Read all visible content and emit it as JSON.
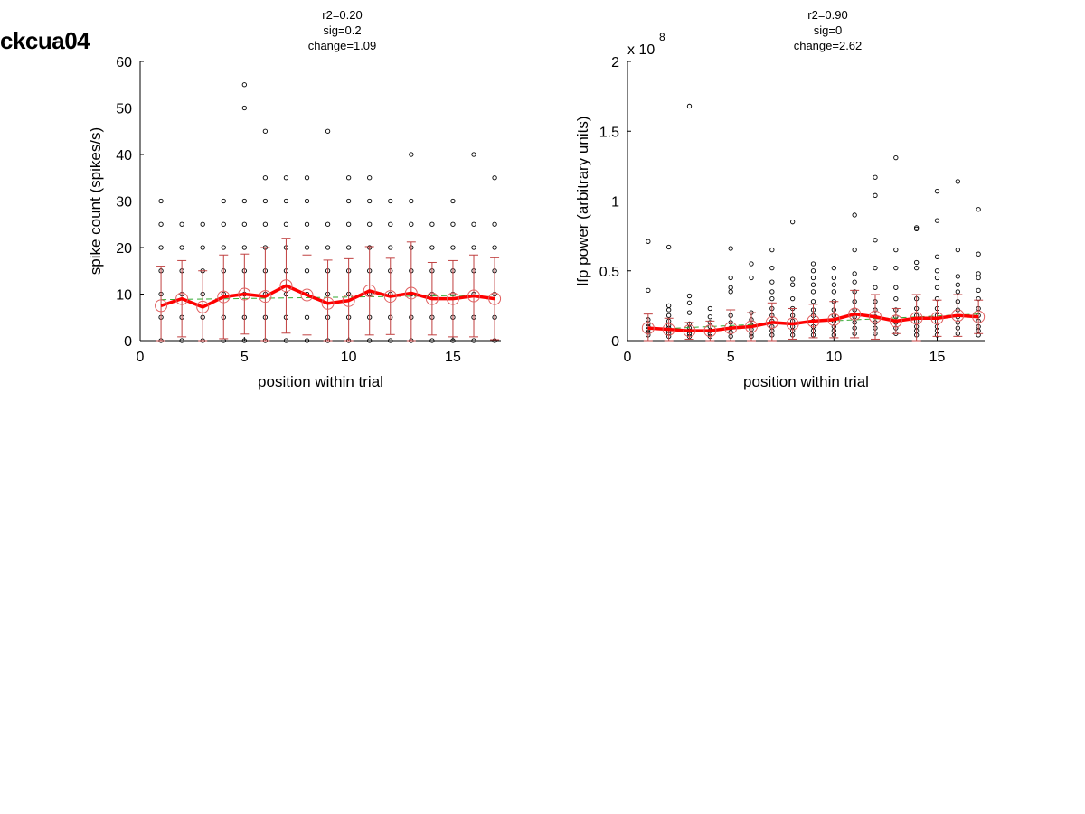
{
  "figure_label": "ckcua04",
  "chart_data": [
    {
      "type": "scatter",
      "title_lines": [
        "r2=0.20",
        "sig=0.2",
        "change=1.09"
      ],
      "xlabel": "position within trial",
      "ylabel": "spike count (spikes/s)",
      "xlim": [
        0,
        17.3
      ],
      "ylim": [
        0,
        60
      ],
      "xticks": [
        0,
        5,
        10,
        15
      ],
      "yticks": [
        0,
        10,
        20,
        30,
        40,
        50,
        60
      ],
      "exponent_label": "",
      "grid": false,
      "colors": {
        "points": "#000000",
        "mean_line": "#ff0000",
        "error_bars": "#c04040",
        "mean_markers": "#e06060",
        "fit_line": "#33aa33"
      },
      "points": [
        [
          1,
          0
        ],
        [
          1,
          5
        ],
        [
          1,
          10
        ],
        [
          1,
          15
        ],
        [
          1,
          20
        ],
        [
          1,
          25
        ],
        [
          1,
          30
        ],
        [
          2,
          0
        ],
        [
          2,
          5
        ],
        [
          2,
          10
        ],
        [
          2,
          15
        ],
        [
          2,
          20
        ],
        [
          2,
          25
        ],
        [
          3,
          0
        ],
        [
          3,
          5
        ],
        [
          3,
          10
        ],
        [
          3,
          15
        ],
        [
          3,
          20
        ],
        [
          3,
          25
        ],
        [
          4,
          0
        ],
        [
          4,
          5
        ],
        [
          4,
          10
        ],
        [
          4,
          15
        ],
        [
          4,
          20
        ],
        [
          4,
          25
        ],
        [
          4,
          30
        ],
        [
          5,
          0
        ],
        [
          5,
          5
        ],
        [
          5,
          10
        ],
        [
          5,
          15
        ],
        [
          5,
          20
        ],
        [
          5,
          25
        ],
        [
          5,
          30
        ],
        [
          5,
          50
        ],
        [
          5,
          55
        ],
        [
          6,
          0
        ],
        [
          6,
          5
        ],
        [
          6,
          10
        ],
        [
          6,
          15
        ],
        [
          6,
          20
        ],
        [
          6,
          25
        ],
        [
          6,
          30
        ],
        [
          6,
          35
        ],
        [
          6,
          45
        ],
        [
          7,
          0
        ],
        [
          7,
          5
        ],
        [
          7,
          10
        ],
        [
          7,
          15
        ],
        [
          7,
          20
        ],
        [
          7,
          25
        ],
        [
          7,
          30
        ],
        [
          7,
          35
        ],
        [
          8,
          0
        ],
        [
          8,
          5
        ],
        [
          8,
          10
        ],
        [
          8,
          15
        ],
        [
          8,
          20
        ],
        [
          8,
          25
        ],
        [
          8,
          30
        ],
        [
          8,
          35
        ],
        [
          9,
          0
        ],
        [
          9,
          5
        ],
        [
          9,
          10
        ],
        [
          9,
          15
        ],
        [
          9,
          20
        ],
        [
          9,
          25
        ],
        [
          9,
          45
        ],
        [
          10,
          0
        ],
        [
          10,
          5
        ],
        [
          10,
          10
        ],
        [
          10,
          15
        ],
        [
          10,
          20
        ],
        [
          10,
          25
        ],
        [
          10,
          30
        ],
        [
          10,
          35
        ],
        [
          11,
          0
        ],
        [
          11,
          5
        ],
        [
          11,
          10
        ],
        [
          11,
          15
        ],
        [
          11,
          20
        ],
        [
          11,
          25
        ],
        [
          11,
          30
        ],
        [
          11,
          35
        ],
        [
          12,
          0
        ],
        [
          12,
          5
        ],
        [
          12,
          10
        ],
        [
          12,
          15
        ],
        [
          12,
          20
        ],
        [
          12,
          25
        ],
        [
          12,
          30
        ],
        [
          13,
          0
        ],
        [
          13,
          5
        ],
        [
          13,
          10
        ],
        [
          13,
          15
        ],
        [
          13,
          20
        ],
        [
          13,
          25
        ],
        [
          13,
          30
        ],
        [
          13,
          40
        ],
        [
          14,
          0
        ],
        [
          14,
          5
        ],
        [
          14,
          10
        ],
        [
          14,
          15
        ],
        [
          14,
          20
        ],
        [
          14,
          25
        ],
        [
          15,
          0
        ],
        [
          15,
          5
        ],
        [
          15,
          10
        ],
        [
          15,
          15
        ],
        [
          15,
          20
        ],
        [
          15,
          25
        ],
        [
          15,
          30
        ],
        [
          16,
          0
        ],
        [
          16,
          5
        ],
        [
          16,
          10
        ],
        [
          16,
          15
        ],
        [
          16,
          20
        ],
        [
          16,
          25
        ],
        [
          16,
          40
        ],
        [
          17,
          0
        ],
        [
          17,
          5
        ],
        [
          17,
          10
        ],
        [
          17,
          15
        ],
        [
          17,
          20
        ],
        [
          17,
          25
        ],
        [
          17,
          35
        ]
      ],
      "mean": {
        "x": [
          1,
          2,
          3,
          4,
          5,
          6,
          7,
          8,
          9,
          10,
          11,
          12,
          13,
          14,
          15,
          16,
          17
        ],
        "y": [
          7.5,
          9.0,
          7.2,
          9.4,
          10.0,
          9.5,
          11.8,
          9.8,
          8.0,
          8.6,
          10.7,
          9.5,
          10.2,
          9.0,
          9.0,
          9.6,
          9.0
        ],
        "err": [
          8.5,
          8.2,
          7.8,
          9.0,
          8.6,
          10.5,
          10.2,
          8.6,
          9.3,
          9.0,
          9.5,
          8.2,
          11.0,
          7.8,
          8.2,
          8.8,
          8.8
        ]
      },
      "fit": {
        "x": [
          1,
          17
        ],
        "y": [
          8.8,
          9.8
        ]
      }
    },
    {
      "type": "scatter",
      "title_lines": [
        "r2=0.90",
        "sig=0",
        "change=2.62"
      ],
      "xlabel": "position within trial",
      "ylabel": "lfp power (arbitrary units)",
      "xlim": [
        0,
        17.3
      ],
      "ylim": [
        0,
        2
      ],
      "xticks": [
        0,
        5,
        10,
        15
      ],
      "ytick_values": [
        0,
        0.5,
        1,
        1.5,
        2
      ],
      "ytick_labels": [
        "0",
        "0.5",
        "1",
        "1.5",
        "2"
      ],
      "exponent_label": "x 10",
      "exponent_power": "8",
      "grid": false,
      "colors": {
        "points": "#000000",
        "mean_line": "#ff0000",
        "error_bars": "#c04040",
        "mean_markers": "#e06060",
        "fit_line": "#33aa33"
      },
      "points": [
        [
          1,
          0.04
        ],
        [
          1,
          0.06
        ],
        [
          1,
          0.08
        ],
        [
          1,
          0.1
        ],
        [
          1,
          0.12
        ],
        [
          1,
          0.15
        ],
        [
          1,
          0.36
        ],
        [
          1,
          0.71
        ],
        [
          2,
          0.03
        ],
        [
          2,
          0.05
        ],
        [
          2,
          0.07
        ],
        [
          2,
          0.09
        ],
        [
          2,
          0.11
        ],
        [
          2,
          0.14
        ],
        [
          2,
          0.18
        ],
        [
          2,
          0.22
        ],
        [
          2,
          0.25
        ],
        [
          2,
          0.67
        ],
        [
          3,
          0.03
        ],
        [
          3,
          0.05
        ],
        [
          3,
          0.07
        ],
        [
          3,
          0.09
        ],
        [
          3,
          0.12
        ],
        [
          3,
          0.2
        ],
        [
          3,
          0.27
        ],
        [
          3,
          0.32
        ],
        [
          3,
          1.68
        ],
        [
          4,
          0.03
        ],
        [
          4,
          0.05
        ],
        [
          4,
          0.07
        ],
        [
          4,
          0.1
        ],
        [
          4,
          0.13
        ],
        [
          4,
          0.17
        ],
        [
          4,
          0.23
        ],
        [
          5,
          0.03
        ],
        [
          5,
          0.06
        ],
        [
          5,
          0.09
        ],
        [
          5,
          0.13
        ],
        [
          5,
          0.18
        ],
        [
          5,
          0.35
        ],
        [
          5,
          0.38
        ],
        [
          5,
          0.45
        ],
        [
          5,
          0.66
        ],
        [
          6,
          0.03
        ],
        [
          6,
          0.05
        ],
        [
          6,
          0.08
        ],
        [
          6,
          0.11
        ],
        [
          6,
          0.15
        ],
        [
          6,
          0.2
        ],
        [
          6,
          0.45
        ],
        [
          6,
          0.55
        ],
        [
          7,
          0.04
        ],
        [
          7,
          0.07
        ],
        [
          7,
          0.1
        ],
        [
          7,
          0.14
        ],
        [
          7,
          0.18
        ],
        [
          7,
          0.23
        ],
        [
          7,
          0.3
        ],
        [
          7,
          0.35
        ],
        [
          7,
          0.42
        ],
        [
          7,
          0.52
        ],
        [
          7,
          0.65
        ],
        [
          8,
          0.04
        ],
        [
          8,
          0.07
        ],
        [
          8,
          0.1
        ],
        [
          8,
          0.14
        ],
        [
          8,
          0.18
        ],
        [
          8,
          0.23
        ],
        [
          8,
          0.3
        ],
        [
          8,
          0.4
        ],
        [
          8,
          0.44
        ],
        [
          8,
          0.85
        ],
        [
          9,
          0.04
        ],
        [
          9,
          0.07
        ],
        [
          9,
          0.1
        ],
        [
          9,
          0.14
        ],
        [
          9,
          0.18
        ],
        [
          9,
          0.22
        ],
        [
          9,
          0.28
        ],
        [
          9,
          0.35
        ],
        [
          9,
          0.4
        ],
        [
          9,
          0.45
        ],
        [
          9,
          0.5
        ],
        [
          9,
          0.55
        ],
        [
          10,
          0.04
        ],
        [
          10,
          0.07
        ],
        [
          10,
          0.1
        ],
        [
          10,
          0.14
        ],
        [
          10,
          0.18
        ],
        [
          10,
          0.22
        ],
        [
          10,
          0.28
        ],
        [
          10,
          0.35
        ],
        [
          10,
          0.4
        ],
        [
          10,
          0.45
        ],
        [
          10,
          0.52
        ],
        [
          11,
          0.05
        ],
        [
          11,
          0.09
        ],
        [
          11,
          0.13
        ],
        [
          11,
          0.17
        ],
        [
          11,
          0.22
        ],
        [
          11,
          0.28
        ],
        [
          11,
          0.35
        ],
        [
          11,
          0.42
        ],
        [
          11,
          0.48
        ],
        [
          11,
          0.65
        ],
        [
          11,
          0.9
        ],
        [
          12,
          0.05
        ],
        [
          12,
          0.09
        ],
        [
          12,
          0.13
        ],
        [
          12,
          0.17
        ],
        [
          12,
          0.22
        ],
        [
          12,
          0.28
        ],
        [
          12,
          0.38
        ],
        [
          12,
          0.52
        ],
        [
          12,
          0.72
        ],
        [
          12,
          1.04
        ],
        [
          12,
          1.17
        ],
        [
          13,
          0.05
        ],
        [
          13,
          0.09
        ],
        [
          13,
          0.13
        ],
        [
          13,
          0.17
        ],
        [
          13,
          0.22
        ],
        [
          13,
          0.3
        ],
        [
          13,
          0.38
        ],
        [
          13,
          0.52
        ],
        [
          13,
          0.65
        ],
        [
          13,
          1.31
        ],
        [
          14,
          0.04
        ],
        [
          14,
          0.07
        ],
        [
          14,
          0.1
        ],
        [
          14,
          0.14
        ],
        [
          14,
          0.18
        ],
        [
          14,
          0.23
        ],
        [
          14,
          0.3
        ],
        [
          14,
          0.52
        ],
        [
          14,
          0.56
        ],
        [
          14,
          0.8
        ],
        [
          14,
          0.81
        ],
        [
          15,
          0.04
        ],
        [
          15,
          0.07
        ],
        [
          15,
          0.1
        ],
        [
          15,
          0.14
        ],
        [
          15,
          0.18
        ],
        [
          15,
          0.23
        ],
        [
          15,
          0.3
        ],
        [
          15,
          0.38
        ],
        [
          15,
          0.45
        ],
        [
          15,
          0.5
        ],
        [
          15,
          0.6
        ],
        [
          15,
          0.86
        ],
        [
          15,
          1.07
        ],
        [
          16,
          0.05
        ],
        [
          16,
          0.09
        ],
        [
          16,
          0.13
        ],
        [
          16,
          0.17
        ],
        [
          16,
          0.22
        ],
        [
          16,
          0.28
        ],
        [
          16,
          0.35
        ],
        [
          16,
          0.4
        ],
        [
          16,
          0.46
        ],
        [
          16,
          0.65
        ],
        [
          16,
          1.14
        ],
        [
          17,
          0.04
        ],
        [
          17,
          0.07
        ],
        [
          17,
          0.1
        ],
        [
          17,
          0.14
        ],
        [
          17,
          0.18
        ],
        [
          17,
          0.23
        ],
        [
          17,
          0.3
        ],
        [
          17,
          0.36
        ],
        [
          17,
          0.45
        ],
        [
          17,
          0.48
        ],
        [
          17,
          0.62
        ],
        [
          17,
          0.94
        ]
      ],
      "mean": {
        "x": [
          1,
          2,
          3,
          4,
          5,
          6,
          7,
          8,
          9,
          10,
          11,
          12,
          13,
          14,
          15,
          16,
          17
        ],
        "y": [
          0.09,
          0.08,
          0.07,
          0.07,
          0.09,
          0.1,
          0.13,
          0.12,
          0.14,
          0.15,
          0.19,
          0.17,
          0.14,
          0.16,
          0.16,
          0.18,
          0.17
        ],
        "err": [
          0.1,
          0.08,
          0.06,
          0.07,
          0.13,
          0.1,
          0.14,
          0.11,
          0.12,
          0.13,
          0.17,
          0.16,
          0.09,
          0.17,
          0.13,
          0.15,
          0.12
        ]
      },
      "fit": {
        "x": [
          1,
          17
        ],
        "y": [
          0.08,
          0.19
        ]
      }
    }
  ]
}
